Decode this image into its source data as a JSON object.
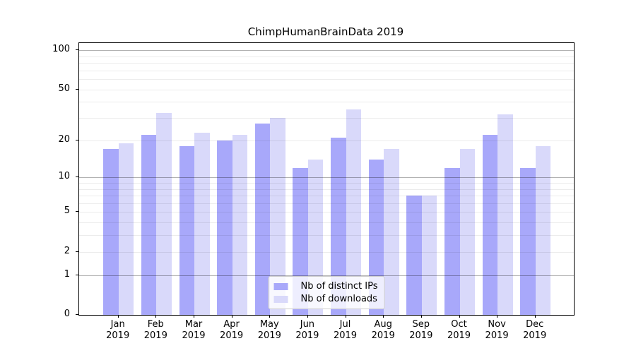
{
  "title": "ChimpHumanBrainData 2019",
  "chart_data": {
    "type": "bar",
    "title": "ChimpHumanBrainData 2019",
    "categories": [
      "Jan",
      "Feb",
      "Mar",
      "Apr",
      "May",
      "Jun",
      "Jul",
      "Aug",
      "Sep",
      "Oct",
      "Nov",
      "Dec"
    ],
    "category_year": "2019",
    "series": [
      {
        "name": "Nb of distinct IPs",
        "color": "#a8a8fa",
        "values": [
          17,
          22,
          18,
          20,
          27,
          12,
          21,
          14,
          7,
          12,
          22,
          12
        ]
      },
      {
        "name": "Nb of downloads",
        "color": "#d9d9fa",
        "values": [
          19,
          33,
          23,
          22,
          30,
          14,
          35,
          17,
          7,
          17,
          32,
          18
        ]
      }
    ],
    "xlabel": "",
    "ylabel": "",
    "yscale": "log1p",
    "ylim": [
      0,
      113
    ],
    "yticks": [
      0,
      1,
      2,
      5,
      10,
      20,
      50,
      100
    ],
    "major_gridlines": [
      1,
      10,
      100
    ],
    "minor_gridlines": [
      2,
      3,
      4,
      5,
      6,
      7,
      8,
      9,
      20,
      30,
      40,
      50,
      60,
      70,
      80,
      90
    ],
    "grid": true,
    "legend_position": "lower center"
  }
}
